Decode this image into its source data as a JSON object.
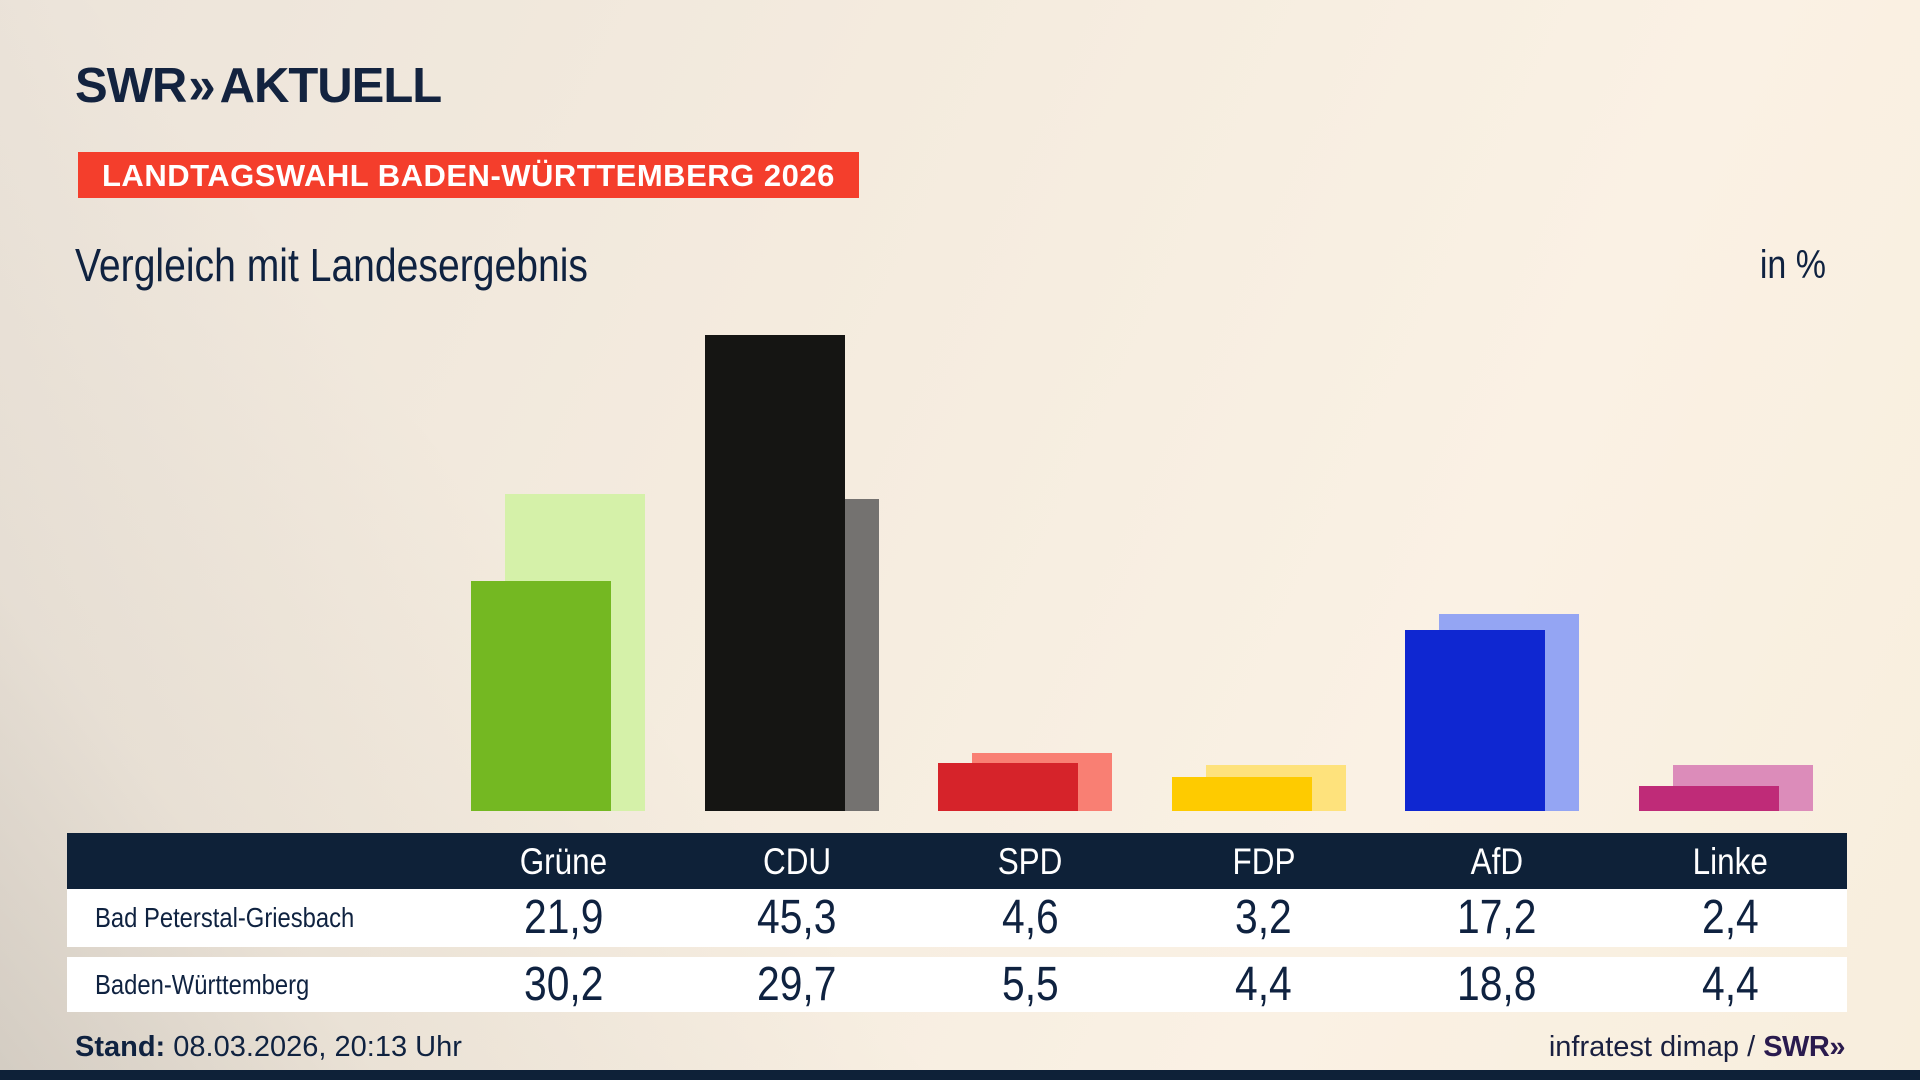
{
  "logo": {
    "brand": "SWR",
    "chevrons": "»",
    "suffix": "AKTUELL"
  },
  "badge": {
    "label": "LANDTAGSWAHL BADEN-WÜRTTEMBERG 2026",
    "bg": "#f43e2c"
  },
  "title": {
    "text": "Vergleich mit Landesergebnis",
    "unit_label": "in %"
  },
  "chart_data": {
    "type": "bar",
    "categories": [
      "Grüne",
      "CDU",
      "SPD",
      "FDP",
      "AfD",
      "Linke"
    ],
    "slugs": [
      "gruene",
      "cdu",
      "spd",
      "fdp",
      "afd",
      "linke"
    ],
    "series": [
      {
        "name": "Bad Peterstal-Griesbach",
        "role": "foreground",
        "values": [
          21.9,
          45.3,
          4.6,
          3.2,
          17.2,
          2.4
        ]
      },
      {
        "name": "Baden-Württemberg",
        "role": "background",
        "values": [
          30.2,
          29.7,
          5.5,
          4.4,
          18.8,
          4.4
        ]
      }
    ],
    "colors": {
      "foreground": [
        "#74b822",
        "#151513",
        "#d6232a",
        "#fecb00",
        "#0f27d1",
        "#bf2b78"
      ],
      "background": [
        "#d5f1a9",
        "#747270",
        "#f97f73",
        "#fee27c",
        "#94a5f3",
        "#dc8cba"
      ]
    },
    "unit": "%",
    "ylim": [
      0,
      47
    ],
    "grid": false,
    "legend": "none (values shown in table below)",
    "title": "Vergleich mit Landesergebnis",
    "xlabel": "",
    "ylabel": "in %"
  },
  "table": {
    "header_accent": "#0e2138",
    "rows": [
      {
        "label": "Bad Peterstal-Griesbach",
        "values": [
          "21,9",
          "45,3",
          "4,6",
          "3,2",
          "17,2",
          "2,4"
        ]
      },
      {
        "label": "Baden-Württemberg",
        "values": [
          "30,2",
          "29,7",
          "5,5",
          "4,4",
          "18,8",
          "4,4"
        ]
      }
    ]
  },
  "footer": {
    "stand_label": "Stand:",
    "stand_value": " 08.03.2026, 20:13 Uhr",
    "source_text": "infratest dimap / ",
    "source_logo": "SWR»"
  }
}
